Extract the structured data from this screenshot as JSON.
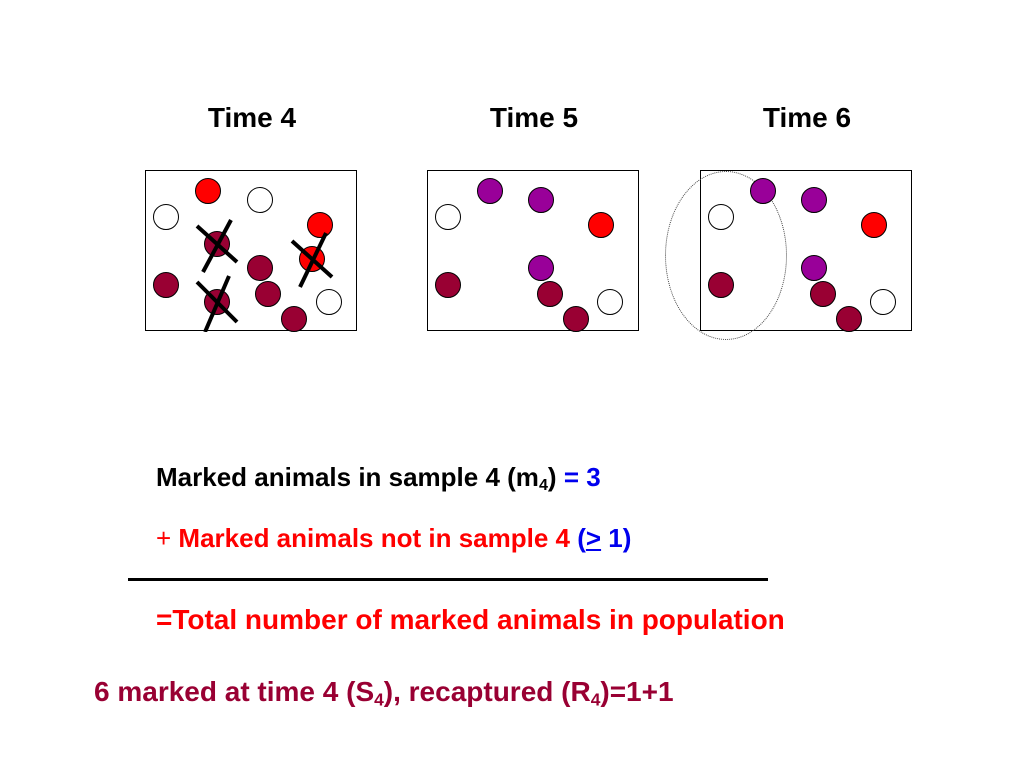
{
  "panels": [
    {
      "title": "Time 4",
      "dots": [
        {
          "fill": "red"
        },
        {
          "fill": "white"
        },
        {
          "fill": "white"
        },
        {
          "fill": "red"
        },
        {
          "fill": "maroon",
          "crossed": true
        },
        {
          "fill": "red",
          "crossed": true
        },
        {
          "fill": "maroon"
        },
        {
          "fill": "maroon"
        },
        {
          "fill": "maroon"
        },
        {
          "fill": "maroon",
          "crossed": true
        },
        {
          "fill": "white"
        },
        {
          "fill": "maroon"
        }
      ]
    },
    {
      "title": "Time 5",
      "dots": [
        {
          "fill": "purple"
        },
        {
          "fill": "purple"
        },
        {
          "fill": "white"
        },
        {
          "fill": "red"
        },
        {
          "fill": "purple"
        },
        {
          "fill": "maroon"
        },
        {
          "fill": "maroon"
        },
        {
          "fill": "white"
        },
        {
          "fill": "maroon"
        }
      ]
    },
    {
      "title": "Time 6",
      "dots": [
        {
          "fill": "purple"
        },
        {
          "fill": "purple"
        },
        {
          "fill": "white"
        },
        {
          "fill": "red"
        },
        {
          "fill": "purple"
        },
        {
          "fill": "maroon"
        },
        {
          "fill": "maroon"
        },
        {
          "fill": "white"
        },
        {
          "fill": "maroon"
        }
      ],
      "highlight": "dotted-ellipse"
    }
  ],
  "colors": {
    "red": "#ff0000",
    "maroon": "#990033",
    "purple": "#990099",
    "white": "#ffffff",
    "blue": "#0000ee"
  },
  "equation": {
    "line1": {
      "text": "Marked animals in sample 4 (m",
      "sub": "4",
      "close": ")",
      "value": "= 3"
    },
    "line2": {
      "plus": "+",
      "text": " Marked animals not in sample 4 ",
      "open": "(",
      "ge": ">",
      "value": " 1",
      "close": ")"
    },
    "line3": "=Total number of marked animals in population",
    "line4": {
      "a": "6 marked at time 4 (S",
      "sub1": "4",
      "b": "), recaptured (R",
      "sub2": "4",
      "c": ")=1+1"
    }
  }
}
